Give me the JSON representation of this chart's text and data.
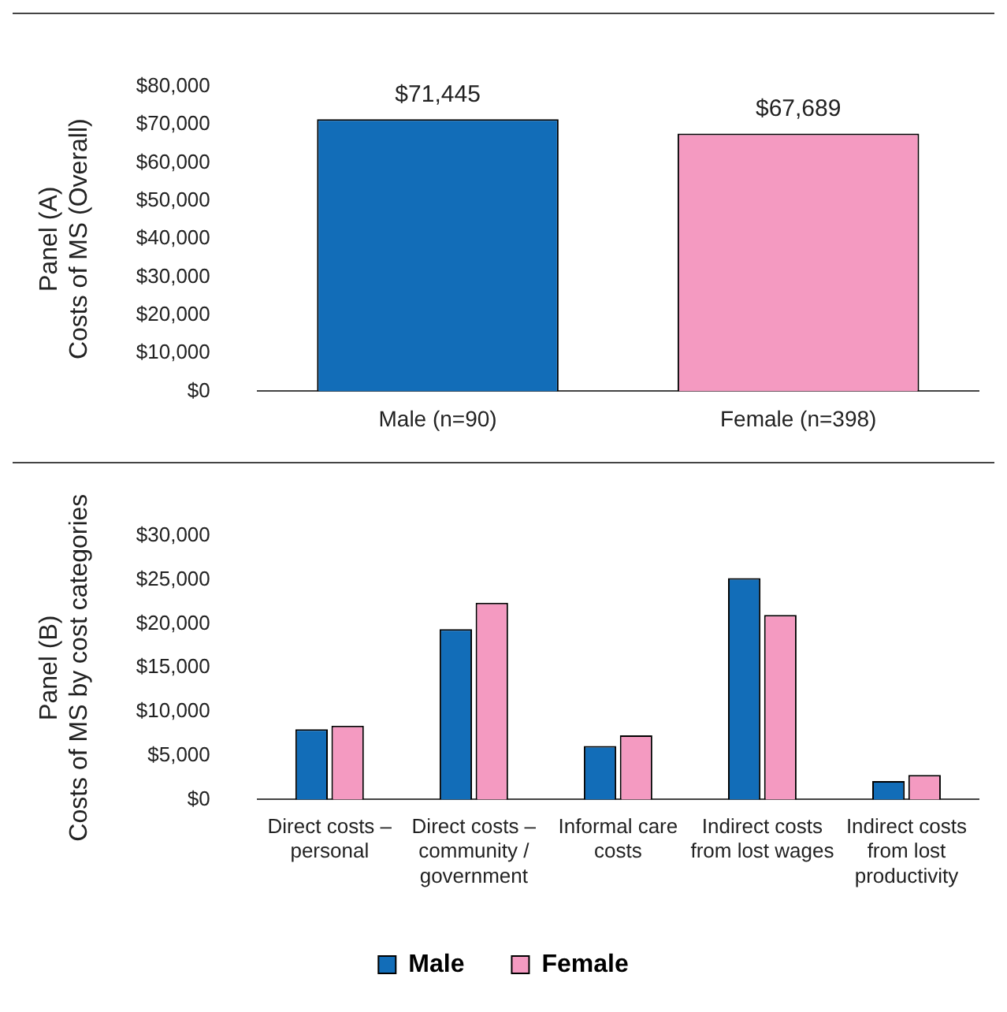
{
  "chart_data": [
    {
      "type": "bar",
      "ylabel": "Panel (A)\nCosts of MS (Overall)",
      "categories": [
        "Male (n=90)",
        "Female (n=398)"
      ],
      "values": [
        71445,
        67689
      ],
      "colors": [
        "#126db8",
        "#f49ac1"
      ],
      "data_labels": true,
      "value_labels": [
        "$71,445",
        "$67,689"
      ],
      "ylim": [
        0,
        80000
      ],
      "yticks": [
        {
          "value": 0,
          "label": "$0"
        },
        {
          "value": 10000,
          "label": "$10,000"
        },
        {
          "value": 20000,
          "label": "$20,000"
        },
        {
          "value": 30000,
          "label": "$30,000"
        },
        {
          "value": 40000,
          "label": "$40,000"
        },
        {
          "value": 50000,
          "label": "$50,000"
        },
        {
          "value": 60000,
          "label": "$60,000"
        },
        {
          "value": 70000,
          "label": "$70,000"
        },
        {
          "value": 80000,
          "label": "$80,000"
        }
      ],
      "grid": false,
      "legend": false
    },
    {
      "type": "bar",
      "ylabel": "Panel (B)\nCosts of MS by cost categories",
      "categories": [
        "Direct costs – personal",
        "Direct costs – community / government",
        "Informal care costs",
        "Indirect costs from lost wages",
        "Indirect costs from lost productivity"
      ],
      "series": [
        {
          "name": "Male",
          "color": "#126db8",
          "values": [
            8000,
            19400,
            6100,
            25200,
            2100
          ]
        },
        {
          "name": "Female",
          "color": "#f49ac1",
          "values": [
            8400,
            22400,
            7300,
            21000,
            2800
          ]
        }
      ],
      "ylim": [
        0,
        30000
      ],
      "yticks": [
        {
          "value": 0,
          "label": "$0"
        },
        {
          "value": 5000,
          "label": "$5,000"
        },
        {
          "value": 10000,
          "label": "$10,000"
        },
        {
          "value": 15000,
          "label": "$15,000"
        },
        {
          "value": 20000,
          "label": "$20,000"
        },
        {
          "value": 25000,
          "label": "$25,000"
        },
        {
          "value": 30000,
          "label": "$30,000"
        }
      ],
      "grid": false,
      "legend": "bottom"
    }
  ]
}
